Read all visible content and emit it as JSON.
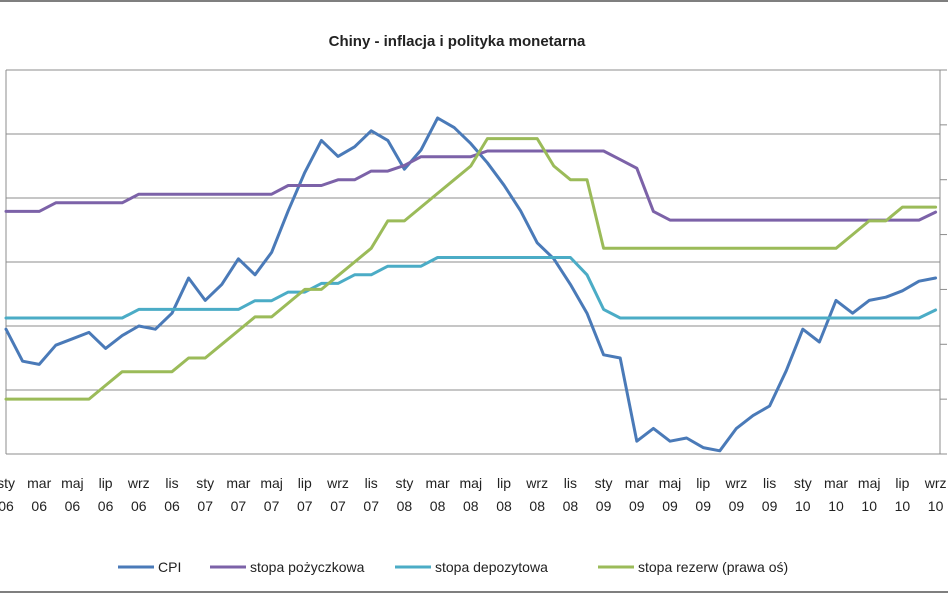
{
  "chart_data": {
    "type": "line",
    "title": "Chiny - inflacja i polityka monetarna",
    "xlabel": "",
    "ylabel": "",
    "grid": true,
    "legend_position": "bottom",
    "x_tick_labels": [
      {
        "top": "sty",
        "bottom": "06"
      },
      {
        "top": "mar",
        "bottom": "06"
      },
      {
        "top": "maj",
        "bottom": "06"
      },
      {
        "top": "lip",
        "bottom": "06"
      },
      {
        "top": "wrz",
        "bottom": "06"
      },
      {
        "top": "lis",
        "bottom": "06"
      },
      {
        "top": "sty",
        "bottom": "07"
      },
      {
        "top": "mar",
        "bottom": "07"
      },
      {
        "top": "maj",
        "bottom": "07"
      },
      {
        "top": "lip",
        "bottom": "07"
      },
      {
        "top": "wrz",
        "bottom": "07"
      },
      {
        "top": "lis",
        "bottom": "07"
      },
      {
        "top": "sty",
        "bottom": "08"
      },
      {
        "top": "mar",
        "bottom": "08"
      },
      {
        "top": "maj",
        "bottom": "08"
      },
      {
        "top": "lip",
        "bottom": "08"
      },
      {
        "top": "wrz",
        "bottom": "08"
      },
      {
        "top": "lis",
        "bottom": "08"
      },
      {
        "top": "sty",
        "bottom": "09"
      },
      {
        "top": "mar",
        "bottom": "09"
      },
      {
        "top": "maj",
        "bottom": "09"
      },
      {
        "top": "lip",
        "bottom": "09"
      },
      {
        "top": "wrz",
        "bottom": "09"
      },
      {
        "top": "lis",
        "bottom": "09"
      },
      {
        "top": "sty",
        "bottom": "10"
      },
      {
        "top": "mar",
        "bottom": "10"
      },
      {
        "top": "maj",
        "bottom": "10"
      },
      {
        "top": "lip",
        "bottom": "10"
      },
      {
        "top": "wrz",
        "bottom": "10"
      }
    ],
    "x_months": 57,
    "ylim_left": [
      -2,
      10
    ],
    "ylim_right": [
      6,
      20
    ],
    "series": [
      {
        "name": "CPI",
        "axis": "left",
        "color": "#4a7ab8",
        "values": [
          1.9,
          0.9,
          0.8,
          1.4,
          1.6,
          1.8,
          1.3,
          1.7,
          2.0,
          1.9,
          2.4,
          3.5,
          2.8,
          3.3,
          4.1,
          3.6,
          4.3,
          5.6,
          6.8,
          7.8,
          7.3,
          7.6,
          8.1,
          7.8,
          6.9,
          7.5,
          8.5,
          8.2,
          7.7,
          7.1,
          6.4,
          5.6,
          4.6,
          4.1,
          3.3,
          2.4,
          1.1,
          1.0,
          -1.6,
          -1.2,
          -1.6,
          -1.5,
          -1.8,
          -1.9,
          -1.2,
          -0.8,
          -0.5,
          0.6,
          1.9,
          1.5,
          2.8,
          2.4,
          2.8,
          2.9,
          3.1,
          3.4,
          3.5
        ]
      },
      {
        "name": "stopa pożyczkowa",
        "axis": "left",
        "color": "#7c62a8",
        "values": [
          5.58,
          5.58,
          5.58,
          5.85,
          5.85,
          5.85,
          5.85,
          5.85,
          6.12,
          6.12,
          6.12,
          6.12,
          6.12,
          6.12,
          6.12,
          6.12,
          6.12,
          6.39,
          6.39,
          6.39,
          6.57,
          6.57,
          6.84,
          6.84,
          7.02,
          7.29,
          7.29,
          7.29,
          7.29,
          7.47,
          7.47,
          7.47,
          7.47,
          7.47,
          7.47,
          7.47,
          7.47,
          7.2,
          6.93,
          5.58,
          5.31,
          5.31,
          5.31,
          5.31,
          5.31,
          5.31,
          5.31,
          5.31,
          5.31,
          5.31,
          5.31,
          5.31,
          5.31,
          5.31,
          5.31,
          5.31,
          5.56
        ]
      },
      {
        "name": "stopa depozytowa",
        "axis": "left",
        "color": "#4bacc6",
        "values": [
          2.25,
          2.25,
          2.25,
          2.25,
          2.25,
          2.25,
          2.25,
          2.25,
          2.52,
          2.52,
          2.52,
          2.52,
          2.52,
          2.52,
          2.52,
          2.79,
          2.79,
          3.06,
          3.06,
          3.33,
          3.33,
          3.6,
          3.6,
          3.87,
          3.87,
          3.87,
          4.14,
          4.14,
          4.14,
          4.14,
          4.14,
          4.14,
          4.14,
          4.14,
          4.14,
          3.6,
          2.52,
          2.25,
          2.25,
          2.25,
          2.25,
          2.25,
          2.25,
          2.25,
          2.25,
          2.25,
          2.25,
          2.25,
          2.25,
          2.25,
          2.25,
          2.25,
          2.25,
          2.25,
          2.25,
          2.25,
          2.5
        ]
      },
      {
        "name": "stopa rezerw (prawa oś)",
        "axis": "right",
        "color": "#9bbb59",
        "values": [
          8.0,
          8.0,
          8.0,
          8.0,
          8.0,
          8.0,
          8.5,
          9.0,
          9.0,
          9.0,
          9.0,
          9.5,
          9.5,
          10.0,
          10.5,
          11.0,
          11.0,
          11.5,
          12.0,
          12.0,
          12.5,
          13.0,
          13.5,
          14.5,
          14.5,
          15.0,
          15.5,
          16.0,
          16.5,
          17.5,
          17.5,
          17.5,
          17.5,
          16.5,
          16.0,
          16.0,
          13.5,
          13.5,
          13.5,
          13.5,
          13.5,
          13.5,
          13.5,
          13.5,
          13.5,
          13.5,
          13.5,
          13.5,
          13.5,
          13.5,
          13.5,
          14.0,
          14.5,
          14.5,
          15.0,
          15.0,
          15.0
        ]
      }
    ]
  }
}
